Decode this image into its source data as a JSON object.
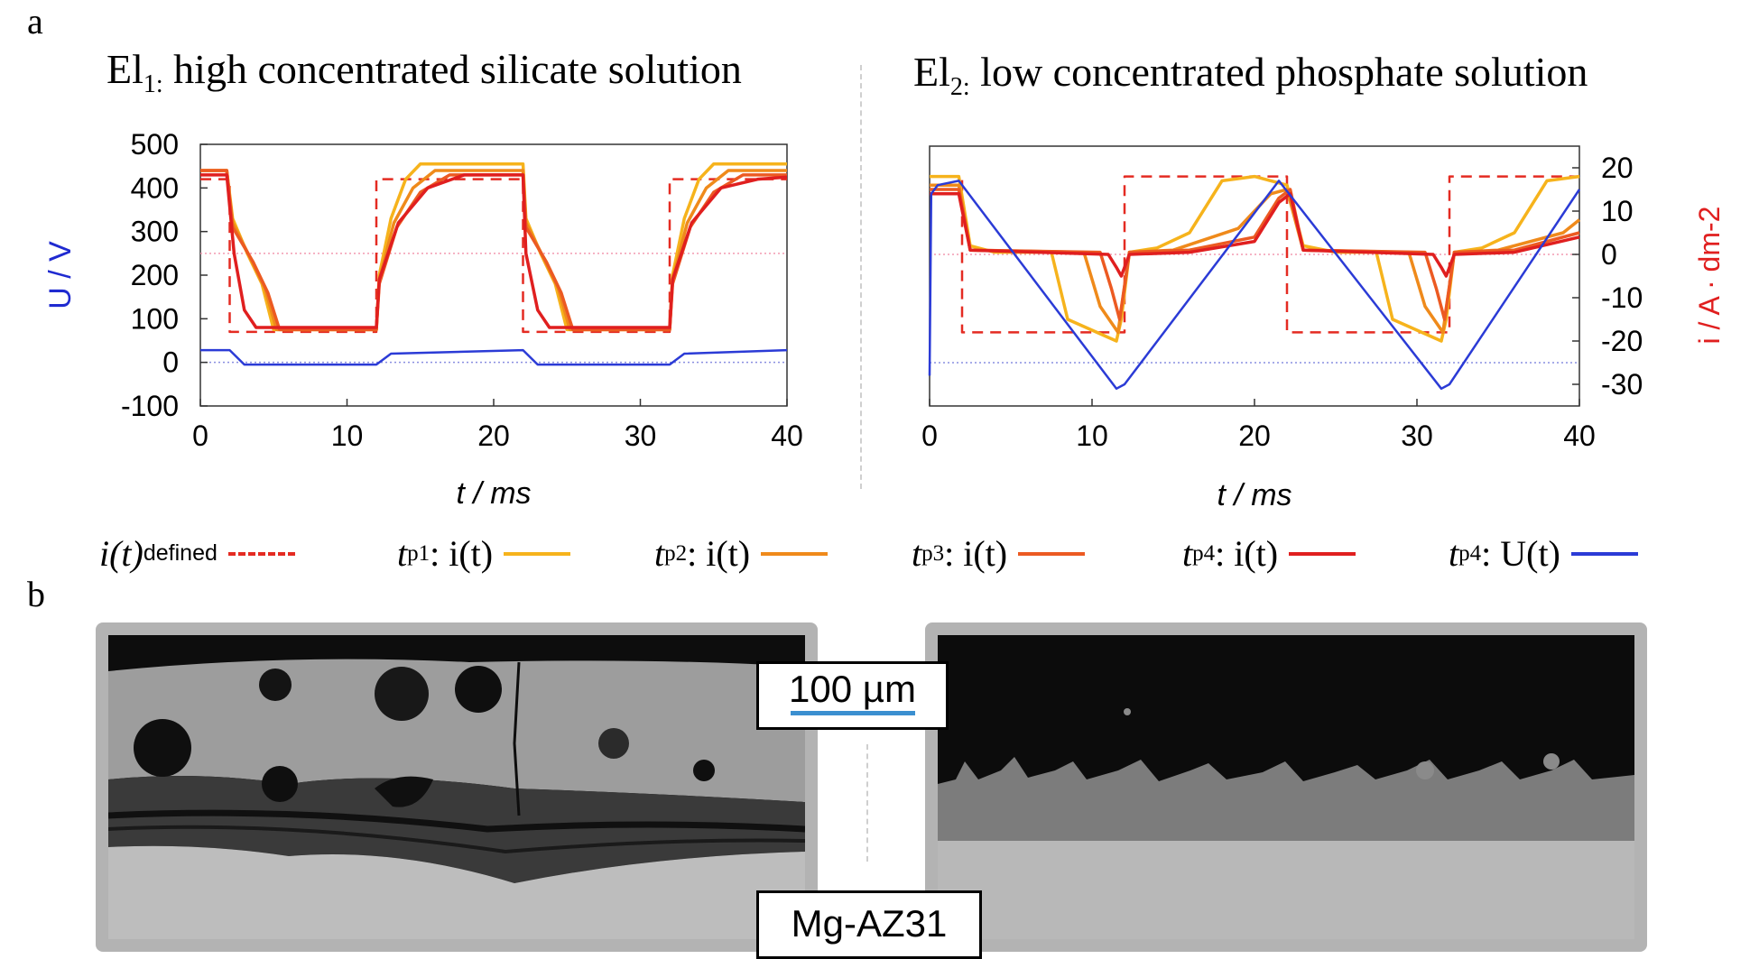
{
  "panel_a_label": "a",
  "panel_b_label": "b",
  "left_title": {
    "main": "El",
    "sub": "1:",
    "rest": " high concentrated silicate solution"
  },
  "right_title": {
    "main": "El",
    "sub": "2:",
    "rest": " low concentrated phosphate solution"
  },
  "legend": [
    {
      "text": "i(t)",
      "sub": "defined",
      "color": "#e42b22",
      "dashed": true
    },
    {
      "text": "t",
      "sub": "p1",
      "after": ": i(t)",
      "color": "#f6b31c",
      "dashed": false
    },
    {
      "text": "t",
      "sub": "p2",
      "after": ": i(t)",
      "color": "#ef8a1b",
      "dashed": false
    },
    {
      "text": "t",
      "sub": "p3",
      "after": ": i(t)",
      "color": "#ec5a22",
      "dashed": false
    },
    {
      "text": "t",
      "sub": "p4",
      "after": ": i(t)",
      "color": "#e01f1f",
      "dashed": false
    },
    {
      "text": "t",
      "sub": "p4",
      "after": ": U(t)",
      "color": "#2b3bd6",
      "dashed": false
    }
  ],
  "scale_bar_label": "100 µm",
  "substrate_label": "Mg-AZ31",
  "colors": {
    "defined": "#e42b22",
    "tp1": "#f6b31c",
    "tp2": "#ef8a1b",
    "tp3": "#ec5a22",
    "tp4": "#e01f1f",
    "voltage": "#2b3bd6",
    "ref_pink": "#f29ab0",
    "ref_blue": "#8a8fe0",
    "scale_blue": "#3b8fd0"
  },
  "chart_data": [
    {
      "type": "line",
      "title": "",
      "xlabel": "t / ms",
      "ylabel": "U / V",
      "xlim": [
        0,
        40
      ],
      "ylim": [
        -100,
        500
      ],
      "xticks": [
        0,
        10,
        20,
        30,
        40
      ],
      "yticks": [
        -100,
        0,
        100,
        200,
        300,
        400,
        500
      ],
      "series": [
        {
          "key": "defined",
          "x": [
            0,
            2,
            2,
            12,
            12,
            22,
            22,
            32,
            32,
            40
          ],
          "y": [
            420,
            420,
            70,
            70,
            420,
            420,
            70,
            70,
            420,
            420
          ]
        },
        {
          "key": "tp1",
          "x": [
            0,
            1.8,
            2.2,
            3.2,
            4.2,
            5.0,
            12,
            12.2,
            13,
            14,
            15,
            22,
            22.2,
            23.2,
            24.2,
            25,
            32,
            32.2,
            33,
            34,
            35,
            40
          ],
          "y": [
            440,
            440,
            330,
            250,
            180,
            75,
            75,
            200,
            330,
            420,
            455,
            455,
            330,
            250,
            180,
            75,
            75,
            200,
            330,
            420,
            455,
            455
          ]
        },
        {
          "key": "tp2",
          "x": [
            0,
            1.8,
            2.2,
            3.4,
            4.4,
            5.2,
            12,
            12.2,
            13.2,
            14.5,
            16,
            22,
            22.2,
            23.4,
            24.4,
            25.2,
            32,
            32.2,
            33.2,
            34.5,
            36,
            40
          ],
          "y": [
            440,
            440,
            320,
            240,
            170,
            75,
            75,
            190,
            320,
            400,
            440,
            440,
            320,
            240,
            170,
            75,
            75,
            190,
            320,
            400,
            440,
            440
          ]
        },
        {
          "key": "tp3",
          "x": [
            0,
            1.8,
            2.2,
            3.6,
            4.6,
            5.4,
            12,
            12.2,
            13.4,
            15,
            17,
            22,
            22.2,
            23.6,
            24.6,
            25.4,
            32,
            32.2,
            33.4,
            35,
            37,
            40
          ],
          "y": [
            440,
            440,
            310,
            230,
            160,
            75,
            75,
            180,
            310,
            390,
            430,
            430,
            310,
            230,
            160,
            75,
            75,
            180,
            310,
            390,
            430,
            430
          ]
        },
        {
          "key": "tp4",
          "x": [
            0,
            1.8,
            2.3,
            3.0,
            3.8,
            12,
            12.2,
            13.5,
            15.5,
            18,
            22,
            22.2,
            23.0,
            23.8,
            32,
            32.2,
            33.5,
            35.5,
            38,
            40
          ],
          "y": [
            430,
            430,
            250,
            120,
            80,
            80,
            190,
            320,
            400,
            430,
            430,
            250,
            120,
            80,
            80,
            190,
            320,
            400,
            420,
            425
          ]
        },
        {
          "key": "voltage",
          "axis": "left",
          "x": [
            0,
            2,
            3,
            12,
            13,
            22,
            23,
            32,
            33,
            40
          ],
          "y": [
            28,
            28,
            -5,
            -5,
            20,
            28,
            -5,
            -5,
            20,
            28
          ]
        }
      ],
      "reference_lines": [
        {
          "key": "ref_pink",
          "y": 250
        },
        {
          "key": "ref_blue",
          "y": 0
        }
      ]
    },
    {
      "type": "line",
      "title": "",
      "xlabel": "t / ms",
      "ylabel_right": "i / A · dm-2",
      "xlim": [
        0,
        40
      ],
      "ylim_right": [
        -35,
        25
      ],
      "xticks": [
        0,
        10,
        20,
        30,
        40
      ],
      "yticks_right": [
        -30,
        -20,
        -10,
        0,
        10,
        20
      ],
      "series": [
        {
          "key": "defined",
          "x": [
            0,
            2,
            2,
            12,
            12,
            22,
            22,
            32,
            32,
            40
          ],
          "y": [
            18,
            18,
            -18,
            -18,
            18,
            18,
            -18,
            -18,
            18,
            18
          ]
        },
        {
          "key": "tp1",
          "x": [
            0,
            1.8,
            2.5,
            4,
            7.5,
            8.5,
            11.5,
            11.8,
            12.3,
            14,
            16,
            18,
            20,
            22,
            23,
            25,
            27.5,
            28.5,
            31.5,
            31.8,
            32.3,
            34,
            36,
            38,
            40
          ],
          "y": [
            18,
            18,
            2,
            0.5,
            0.5,
            -15,
            -20,
            -15,
            0.5,
            1.5,
            5,
            17,
            18,
            16,
            2,
            0.5,
            0.5,
            -15,
            -20,
            -15,
            0.5,
            1.5,
            5,
            17,
            18
          ]
        },
        {
          "key": "tp2",
          "x": [
            0,
            1.8,
            2.5,
            9.5,
            10.5,
            11.6,
            12.3,
            15,
            19,
            21,
            22,
            23,
            29.5,
            30.5,
            31.6,
            32.3,
            35,
            39,
            40
          ],
          "y": [
            16,
            16,
            1,
            0.5,
            -12,
            -18,
            0.5,
            1,
            6,
            14,
            15,
            1,
            0.5,
            -12,
            -18,
            0.5,
            1,
            5,
            8
          ]
        },
        {
          "key": "tp3",
          "x": [
            0,
            1.8,
            2.5,
            10.5,
            11.2,
            11.7,
            12.3,
            16,
            20,
            21.5,
            22.2,
            23,
            30.5,
            31.2,
            31.7,
            32.3,
            36,
            40
          ],
          "y": [
            15,
            15,
            1,
            0.5,
            -8,
            -15,
            0.5,
            1,
            4,
            13,
            15,
            1,
            0.5,
            -8,
            -15,
            0.5,
            1,
            5
          ]
        },
        {
          "key": "tp4",
          "x": [
            0,
            1.8,
            2.5,
            11,
            11.5,
            11.8,
            12.3,
            16,
            20,
            21.5,
            22.2,
            23,
            31,
            31.5,
            31.8,
            32.3,
            36,
            40
          ],
          "y": [
            14,
            14,
            1,
            0,
            -3,
            -5,
            0,
            0.5,
            3,
            12,
            14,
            1,
            0,
            -3,
            -5,
            0,
            0.5,
            4
          ]
        },
        {
          "key": "voltage",
          "axis": "right-scaled",
          "x": [
            0,
            0.1,
            0.5,
            1.8,
            11.5,
            12,
            21.5,
            31.5,
            32,
            40
          ],
          "y": [
            -28,
            14,
            16,
            17,
            -31,
            -30,
            17,
            -31,
            -30,
            15
          ]
        }
      ],
      "reference_lines": [
        {
          "key": "ref_pink",
          "y": 0
        },
        {
          "key": "ref_blue",
          "y": -25
        }
      ]
    }
  ]
}
